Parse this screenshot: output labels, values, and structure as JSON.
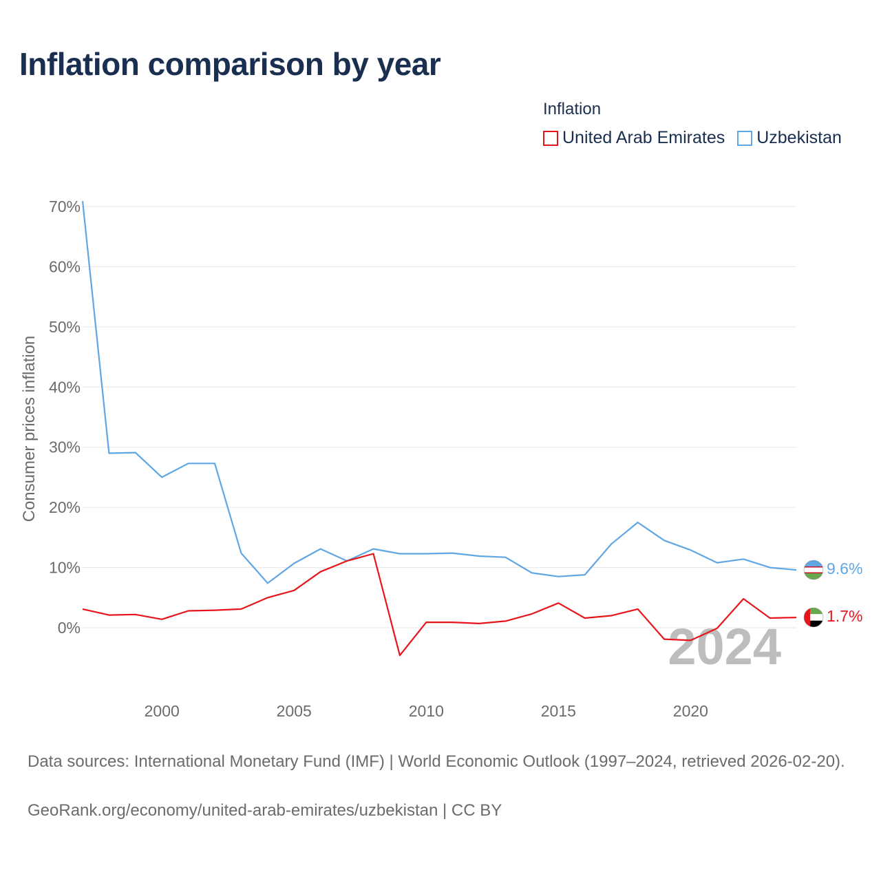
{
  "title": "Inflation comparison by year",
  "legend": {
    "title": "Inflation"
  },
  "colors": {
    "uae": "#e8141b",
    "uzb": "#5ea6e4",
    "grid": "#e6e6e6",
    "axis_text": "#6b6b6b",
    "year_watermark": "#bdbdbd"
  },
  "chart_data": {
    "type": "line",
    "title": "Inflation comparison by year",
    "ylabel": "Consumer prices inflation",
    "xlabel": "",
    "ylim": [
      -11,
      71
    ],
    "xlim": [
      1997,
      2024
    ],
    "yticks": [
      0,
      10,
      20,
      30,
      40,
      50,
      60,
      70
    ],
    "ytick_labels": [
      "0%",
      "10%",
      "20%",
      "30%",
      "40%",
      "50%",
      "60%",
      "70%"
    ],
    "xticks": [
      2000,
      2005,
      2010,
      2015,
      2020
    ],
    "xtick_labels": [
      "2000",
      "2005",
      "2010",
      "2015",
      "2020"
    ],
    "x": [
      1997,
      1998,
      1999,
      2000,
      2001,
      2002,
      2003,
      2004,
      2005,
      2006,
      2007,
      2008,
      2009,
      2010,
      2011,
      2012,
      2013,
      2014,
      2015,
      2016,
      2017,
      2018,
      2019,
      2020,
      2021,
      2022,
      2023,
      2024
    ],
    "series": [
      {
        "name": "United Arab Emirates",
        "color": "#e8141b",
        "end_label": "1.7%",
        "values": [
          3.1,
          2.1,
          2.2,
          1.4,
          2.8,
          2.9,
          3.1,
          5.0,
          6.2,
          9.3,
          11.1,
          12.3,
          -4.6,
          0.9,
          0.9,
          0.7,
          1.1,
          2.3,
          4.1,
          1.6,
          2.0,
          3.1,
          -1.9,
          -2.1,
          -0.1,
          4.8,
          1.6,
          1.7
        ]
      },
      {
        "name": "Uzbekistan",
        "color": "#5ea6e4",
        "end_label": "9.6%",
        "values": [
          70.9,
          29.0,
          29.1,
          25.0,
          27.3,
          27.3,
          12.4,
          7.4,
          10.7,
          13.1,
          11.1,
          13.1,
          12.3,
          12.3,
          12.4,
          11.9,
          11.7,
          9.1,
          8.5,
          8.8,
          13.9,
          17.5,
          14.5,
          12.9,
          10.8,
          11.4,
          10.0,
          9.6
        ]
      }
    ],
    "annotation": "2024",
    "legend_position": "top-right"
  },
  "footer": {
    "sources": "Data sources: International Monetary Fund (IMF) | World Economic Outlook (1997–2024, retrieved 2026-02-20).",
    "credit": "GeoRank.org/economy/united-arab-emirates/uzbekistan | CC BY"
  }
}
